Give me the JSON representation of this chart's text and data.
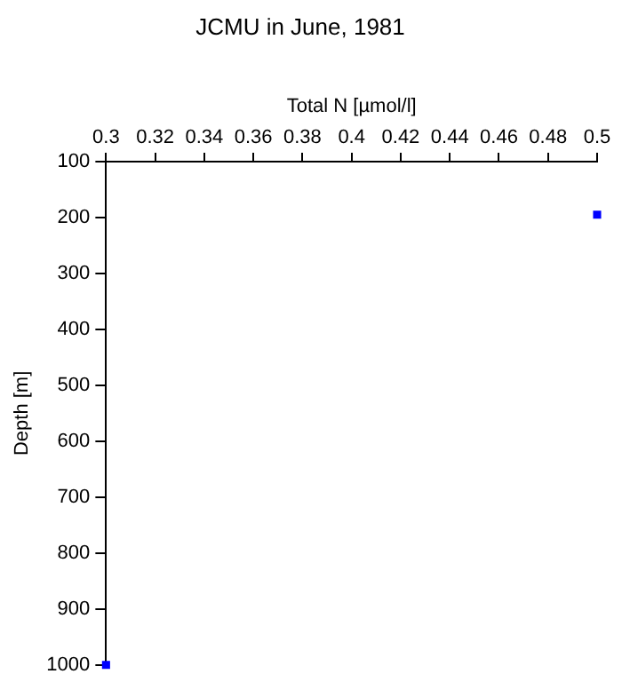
{
  "chart_data": {
    "type": "scatter",
    "title": "JCMU in June, 1981",
    "xlabel": "Total N [µmol/l]",
    "ylabel": "Depth [m]",
    "x": [
      0.5,
      0.3
    ],
    "series": [
      {
        "color": "#0000ff",
        "values": [
          195,
          1000
        ]
      }
    ],
    "xlim": [
      0.3,
      0.5
    ],
    "xticks": [
      0.3,
      0.32,
      0.34,
      0.36,
      0.38,
      0.4,
      0.42,
      0.44,
      0.46,
      0.48,
      0.5
    ],
    "ylim": [
      1000,
      100
    ],
    "yticks": [
      100,
      200,
      300,
      400,
      500,
      600,
      700,
      800,
      900,
      1000
    ],
    "marker": "square",
    "grid": false,
    "legend": false
  }
}
